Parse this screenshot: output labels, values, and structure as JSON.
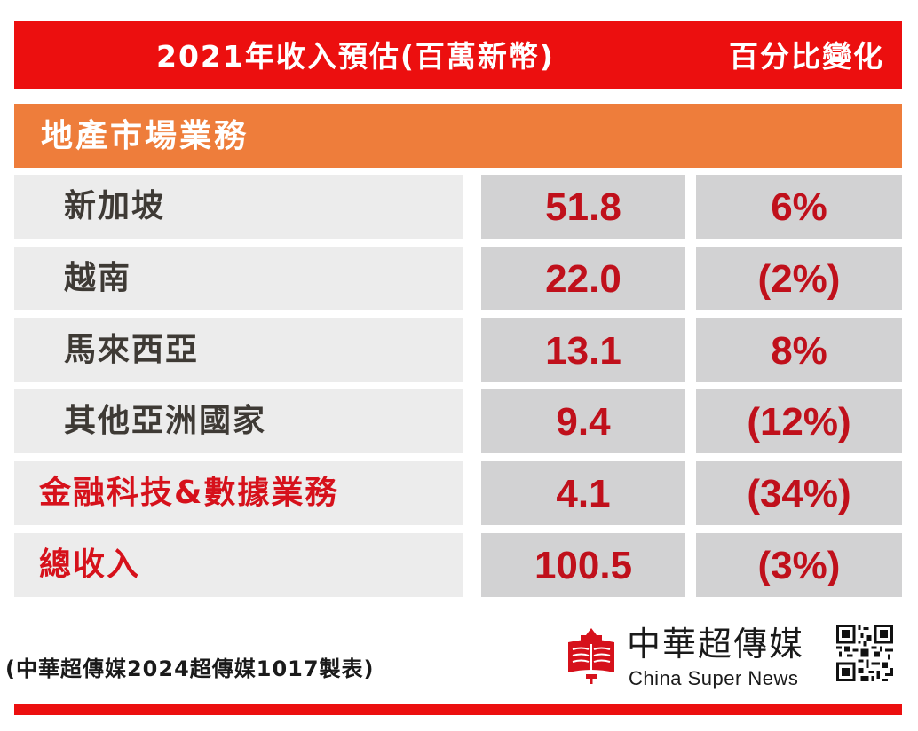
{
  "header": {
    "revenue_label": "2021年收入預估(百萬新幣)",
    "change_label": "百分比變化"
  },
  "section": {
    "title": "地產市場業務"
  },
  "rows": [
    {
      "label": "新加坡",
      "value": "51.8",
      "change": "6%"
    },
    {
      "label": "越南",
      "value": "22.0",
      "change": "(2%)"
    },
    {
      "label": "馬來西亞",
      "value": "13.1",
      "change": "8%"
    },
    {
      "label": "其他亞洲國家",
      "value": "9.4",
      "change": "(12%)"
    },
    {
      "label": "金融科技&數據業務",
      "value": "4.1",
      "change": "(34%)"
    },
    {
      "label": "總收入",
      "value": "100.5",
      "change": "(3%)"
    }
  ],
  "footer": {
    "note": "(中華超傳媒2024超傳媒1017製表)",
    "brand_cn": "中華超傳媒",
    "brand_en": "China Super News"
  },
  "colors": {
    "header_red": "#ec0f0f",
    "section_orange": "#ee7d3b",
    "value_red": "#c0101b",
    "label_dark": "#3e3a35",
    "highlight_red": "#d6111b"
  },
  "chart_data": {
    "type": "table",
    "columns": [
      "2021年收入預估(百萬新幣)",
      "百分比變化"
    ],
    "group": "地產市場業務",
    "rows": [
      {
        "name": "新加坡",
        "revenue": 51.8,
        "change_pct": 6
      },
      {
        "name": "越南",
        "revenue": 22.0,
        "change_pct": -2
      },
      {
        "name": "馬來西亞",
        "revenue": 13.1,
        "change_pct": 8
      },
      {
        "name": "其他亞洲國家",
        "revenue": 9.4,
        "change_pct": -12
      },
      {
        "name": "金融科技&數據業務",
        "revenue": 4.1,
        "change_pct": -34
      },
      {
        "name": "總收入",
        "revenue": 100.5,
        "change_pct": -3
      }
    ]
  }
}
